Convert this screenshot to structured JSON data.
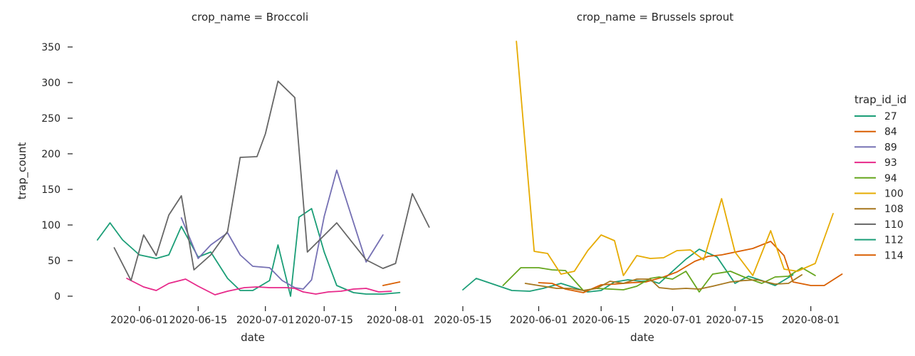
{
  "figure": {
    "ylabel": "trap_count",
    "xlabel": "date",
    "legend_title": "trap_id_id"
  },
  "chart_data": [
    {
      "type": "line",
      "title": "crop_name = Broccoli",
      "xlabel": "date",
      "ylabel": "trap_count",
      "xlim": [
        "2020-05-20",
        "2020-08-06"
      ],
      "ylim": [
        -15,
        360
      ],
      "xticks": [
        "2020-06-01",
        "2020-06-15",
        "2020-07-01",
        "2020-07-15",
        "2020-08-01"
      ],
      "yticks": [
        0,
        50,
        100,
        150,
        200,
        250,
        300,
        350
      ],
      "grid": false,
      "series": [
        {
          "name": "27",
          "color": "#1b9e77",
          "points": [
            [
              "2020-05-22",
              79
            ],
            [
              "2020-05-25",
              103
            ],
            [
              "2020-05-28",
              79
            ],
            [
              "2020-06-01",
              58
            ],
            [
              "2020-06-05",
              53
            ],
            [
              "2020-06-08",
              58
            ],
            [
              "2020-06-11",
              98
            ],
            [
              "2020-06-15",
              55
            ],
            [
              "2020-06-18",
              62
            ],
            [
              "2020-06-22",
              25
            ],
            [
              "2020-06-25",
              8
            ],
            [
              "2020-06-28",
              8
            ],
            [
              "2020-07-02",
              22
            ],
            [
              "2020-07-04",
              72
            ],
            [
              "2020-07-07",
              0
            ],
            [
              "2020-07-09",
              111
            ],
            [
              "2020-07-12",
              123
            ],
            [
              "2020-07-15",
              62
            ],
            [
              "2020-07-18",
              15
            ],
            [
              "2020-07-22",
              5
            ],
            [
              "2020-07-25",
              3
            ],
            [
              "2020-07-29",
              3
            ],
            [
              "2020-08-02",
              5
            ]
          ]
        },
        {
          "name": "84",
          "color": "#d95f02",
          "points": [
            [
              "2020-07-29",
              15
            ],
            [
              "2020-08-02",
              20
            ]
          ]
        },
        {
          "name": "89",
          "color": "#7570b3",
          "points": [
            [
              "2020-06-11",
              110
            ],
            [
              "2020-06-15",
              53
            ],
            [
              "2020-06-18",
              72
            ],
            [
              "2020-06-22",
              89
            ],
            [
              "2020-06-25",
              58
            ],
            [
              "2020-06-28",
              42
            ],
            [
              "2020-07-02",
              40
            ],
            [
              "2020-07-05",
              22
            ],
            [
              "2020-07-08",
              12
            ],
            [
              "2020-07-10",
              10
            ],
            [
              "2020-07-12",
              23
            ],
            [
              "2020-07-15",
              112
            ],
            [
              "2020-07-18",
              177
            ],
            [
              "2020-07-25",
              48
            ],
            [
              "2020-07-29",
              86
            ]
          ]
        },
        {
          "name": "93",
          "color": "#e7298a",
          "points": [
            [
              "2020-05-29",
              25
            ],
            [
              "2020-06-02",
              13
            ],
            [
              "2020-06-05",
              8
            ],
            [
              "2020-06-08",
              18
            ],
            [
              "2020-06-12",
              24
            ],
            [
              "2020-06-15",
              14
            ],
            [
              "2020-06-19",
              2
            ],
            [
              "2020-06-22",
              7
            ],
            [
              "2020-06-26",
              12
            ],
            [
              "2020-06-29",
              13
            ],
            [
              "2020-07-02",
              12
            ],
            [
              "2020-07-06",
              12
            ],
            [
              "2020-07-08",
              11
            ],
            [
              "2020-07-10",
              6
            ],
            [
              "2020-07-13",
              3
            ],
            [
              "2020-07-16",
              6
            ],
            [
              "2020-07-19",
              7
            ],
            [
              "2020-07-22",
              10
            ],
            [
              "2020-07-25",
              11
            ],
            [
              "2020-07-28",
              6
            ],
            [
              "2020-07-31",
              7
            ]
          ]
        },
        {
          "name": "110",
          "color": "#666666",
          "points": [
            [
              "2020-05-26",
              68
            ],
            [
              "2020-05-30",
              22
            ],
            [
              "2020-06-02",
              86
            ],
            [
              "2020-06-05",
              57
            ],
            [
              "2020-06-08",
              114
            ],
            [
              "2020-06-11",
              141
            ],
            [
              "2020-06-14",
              37
            ],
            [
              "2020-06-18",
              58
            ],
            [
              "2020-06-22",
              91
            ],
            [
              "2020-06-25",
              195
            ],
            [
              "2020-06-29",
              196
            ],
            [
              "2020-07-01",
              228
            ],
            [
              "2020-07-04",
              302
            ],
            [
              "2020-07-08",
              279
            ],
            [
              "2020-07-11",
              62
            ],
            [
              "2020-07-18",
              103
            ],
            [
              "2020-07-25",
              51
            ],
            [
              "2020-07-29",
              39
            ],
            [
              "2020-08-01",
              46
            ],
            [
              "2020-08-05",
              144
            ],
            [
              "2020-08-09",
              97
            ]
          ]
        }
      ]
    },
    {
      "type": "line",
      "title": "crop_name = Brussels sprout",
      "xlabel": "date",
      "ylabel": "",
      "xlim": [
        "2020-05-15",
        "2020-08-06"
      ],
      "ylim": [
        -15,
        360
      ],
      "xticks": [
        "2020-05-15",
        "2020-06-01",
        "2020-06-15",
        "2020-07-01",
        "2020-07-15",
        "2020-08-01"
      ],
      "yticks": [
        0,
        50,
        100,
        150,
        200,
        250,
        300,
        350
      ],
      "grid": false,
      "series": [
        {
          "name": "27",
          "color": "#1b9e77",
          "points": [
            [
              "2020-05-15",
              9
            ],
            [
              "2020-05-18",
              25
            ],
            [
              "2020-05-26",
              8
            ],
            [
              "2020-05-30",
              7
            ],
            [
              "2020-06-02",
              11
            ],
            [
              "2020-06-06",
              18
            ],
            [
              "2020-06-09",
              12
            ],
            [
              "2020-06-12",
              6
            ],
            [
              "2020-06-15",
              8
            ],
            [
              "2020-06-18",
              20
            ],
            [
              "2020-06-21",
              23
            ],
            [
              "2020-06-24",
              21
            ],
            [
              "2020-06-26",
              22
            ],
            [
              "2020-06-28",
              18
            ],
            [
              "2020-07-01",
              35
            ],
            [
              "2020-07-04",
              52
            ],
            [
              "2020-07-07",
              66
            ],
            [
              "2020-07-11",
              55
            ],
            [
              "2020-07-15",
              18
            ],
            [
              "2020-07-18",
              28
            ],
            [
              "2020-07-21",
              22
            ],
            [
              "2020-07-24",
              15
            ],
            [
              "2020-07-28",
              30
            ]
          ]
        },
        {
          "name": "84",
          "color": "#d95f02",
          "points": [
            [
              "2020-06-01",
              19
            ],
            [
              "2020-06-04",
              18
            ],
            [
              "2020-06-07",
              10
            ],
            [
              "2020-06-11",
              5
            ],
            [
              "2020-06-15",
              16
            ],
            [
              "2020-06-18",
              17
            ],
            [
              "2020-06-22",
              19
            ],
            [
              "2020-06-25",
              20
            ],
            [
              "2020-06-29",
              27
            ],
            [
              "2020-07-02",
              34
            ],
            [
              "2020-07-06",
              49
            ],
            [
              "2020-07-09",
              56
            ],
            [
              "2020-07-12",
              58
            ],
            [
              "2020-07-19",
              67
            ],
            [
              "2020-07-23",
              77
            ],
            [
              "2020-07-26",
              57
            ],
            [
              "2020-07-28",
              20
            ],
            [
              "2020-08-01",
              15
            ],
            [
              "2020-08-04",
              15
            ],
            [
              "2020-08-08",
              31
            ]
          ]
        },
        {
          "name": "94",
          "color": "#66a61e",
          "points": [
            [
              "2020-05-24",
              15
            ],
            [
              "2020-05-28",
              40
            ],
            [
              "2020-06-01",
              40
            ],
            [
              "2020-06-04",
              37
            ],
            [
              "2020-06-07",
              36
            ],
            [
              "2020-06-11",
              8
            ],
            [
              "2020-06-14",
              11
            ],
            [
              "2020-06-17",
              10
            ],
            [
              "2020-06-20",
              9
            ],
            [
              "2020-06-23",
              14
            ],
            [
              "2020-06-26",
              25
            ],
            [
              "2020-06-28",
              27
            ],
            [
              "2020-07-01",
              24
            ],
            [
              "2020-07-04",
              35
            ],
            [
              "2020-07-07",
              6
            ],
            [
              "2020-07-10",
              31
            ],
            [
              "2020-07-14",
              35
            ],
            [
              "2020-07-17",
              27
            ],
            [
              "2020-07-21",
              18
            ],
            [
              "2020-07-24",
              27
            ],
            [
              "2020-07-27",
              28
            ],
            [
              "2020-07-30",
              40
            ],
            [
              "2020-08-02",
              29
            ]
          ]
        },
        {
          "name": "100",
          "color": "#e6ab02",
          "points": [
            [
              "2020-05-27",
              358
            ],
            [
              "2020-05-31",
              63
            ],
            [
              "2020-06-03",
              60
            ],
            [
              "2020-06-06",
              31
            ],
            [
              "2020-06-09",
              35
            ],
            [
              "2020-06-12",
              64
            ],
            [
              "2020-06-15",
              86
            ],
            [
              "2020-06-18",
              78
            ],
            [
              "2020-06-20",
              29
            ],
            [
              "2020-06-23",
              57
            ],
            [
              "2020-06-26",
              53
            ],
            [
              "2020-06-29",
              54
            ],
            [
              "2020-07-02",
              64
            ],
            [
              "2020-07-05",
              65
            ],
            [
              "2020-07-08",
              51
            ],
            [
              "2020-07-12",
              137
            ],
            [
              "2020-07-15",
              62
            ],
            [
              "2020-07-19",
              29
            ],
            [
              "2020-07-23",
              92
            ],
            [
              "2020-07-26",
              38
            ],
            [
              "2020-07-29",
              35
            ],
            [
              "2020-08-02",
              46
            ],
            [
              "2020-08-06",
              116
            ]
          ]
        },
        {
          "name": "108",
          "color": "#a6761d",
          "points": [
            [
              "2020-05-29",
              18
            ],
            [
              "2020-06-02",
              14
            ],
            [
              "2020-06-05",
              11
            ],
            [
              "2020-06-08",
              11
            ],
            [
              "2020-06-11",
              8
            ],
            [
              "2020-06-14",
              11
            ],
            [
              "2020-06-17",
              21
            ],
            [
              "2020-06-20",
              18
            ],
            [
              "2020-06-23",
              24
            ],
            [
              "2020-06-26",
              24
            ],
            [
              "2020-06-28",
              12
            ],
            [
              "2020-07-01",
              10
            ],
            [
              "2020-07-04",
              11
            ],
            [
              "2020-07-07",
              10
            ],
            [
              "2020-07-10",
              14
            ],
            [
              "2020-07-14",
              20
            ],
            [
              "2020-07-17",
              22
            ],
            [
              "2020-07-20",
              23
            ],
            [
              "2020-07-24",
              17
            ],
            [
              "2020-07-27",
              18
            ],
            [
              "2020-07-30",
              30
            ]
          ]
        }
      ]
    }
  ],
  "legend": {
    "title": "trap_id_id",
    "entries": [
      {
        "label": "27",
        "color": "#1b9e77"
      },
      {
        "label": "84",
        "color": "#d95f02"
      },
      {
        "label": "89",
        "color": "#7570b3"
      },
      {
        "label": "93",
        "color": "#e7298a"
      },
      {
        "label": "94",
        "color": "#66a61e"
      },
      {
        "label": "100",
        "color": "#e6ab02"
      },
      {
        "label": "108",
        "color": "#a6761d"
      },
      {
        "label": "110",
        "color": "#666666"
      },
      {
        "label": "112",
        "color": "#1b9e77"
      },
      {
        "label": "114",
        "color": "#d95f02"
      }
    ]
  }
}
